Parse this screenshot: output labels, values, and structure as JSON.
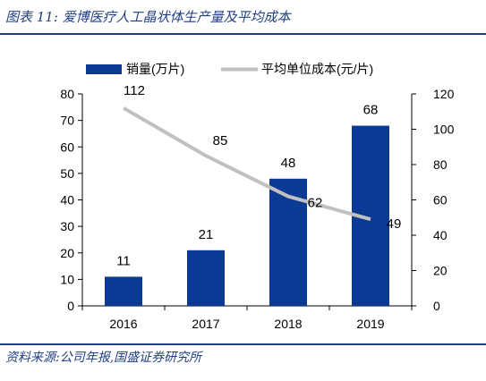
{
  "header": {
    "title": "图表 11:  爱博医疗人工晶状体生产量及平均成本"
  },
  "footer": {
    "source": "资料来源:公司年报,国盛证券研究所"
  },
  "colors": {
    "bar": "#0a3a93",
    "line": "#c0c0c0",
    "title": "#1f3f84"
  },
  "chart_data": {
    "type": "bar",
    "categories": [
      "2016",
      "2017",
      "2018",
      "2019"
    ],
    "series": [
      {
        "name": "销量(万片)",
        "type": "bar",
        "axis": "left",
        "values": [
          11,
          21,
          48,
          68
        ]
      },
      {
        "name": "平均单位成本(元/片)",
        "type": "line",
        "axis": "right",
        "values": [
          112,
          85,
          62,
          49
        ]
      }
    ],
    "y_left": {
      "min": 0,
      "max": 80,
      "ticks": [
        0,
        10,
        20,
        30,
        40,
        50,
        60,
        70,
        80
      ]
    },
    "y_right": {
      "min": 0,
      "max": 120,
      "ticks": [
        0,
        20,
        40,
        60,
        80,
        100,
        120
      ]
    },
    "legend": "top-center",
    "grid": false
  }
}
